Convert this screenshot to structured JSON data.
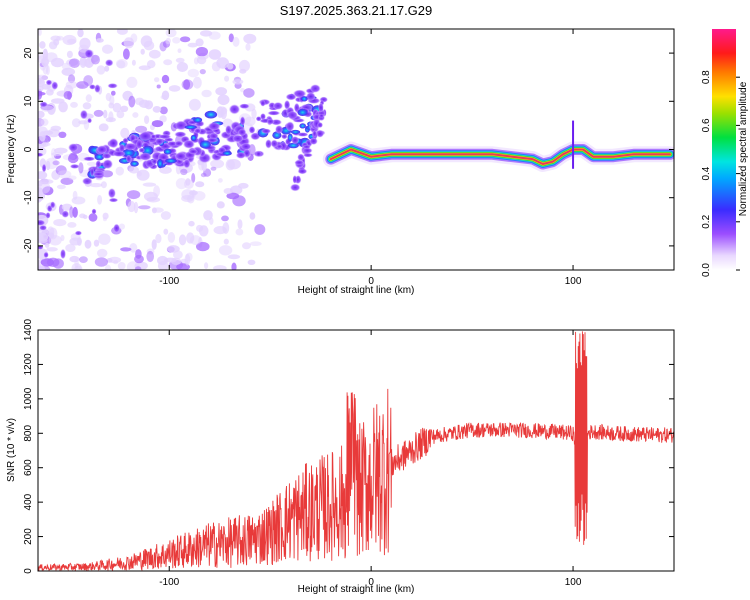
{
  "colors": {
    "background": "#ffffff",
    "snr_line": "#e83a3a",
    "spectral_band": "#e83a5a",
    "spectral_halo": "#7a2ee8"
  },
  "chart_data": [
    {
      "type": "heatmap",
      "panel": "top",
      "title": "S197.2025.363.21.17.G29",
      "xlabel": "Height of straight line (km)",
      "ylabel": "Frequency (Hz)",
      "xlim": [
        -165,
        150
      ],
      "ylim": [
        -25,
        25
      ],
      "xticks": [
        -100,
        0,
        100
      ],
      "yticks": [
        -20,
        -10,
        0,
        10,
        20
      ],
      "colorbar": {
        "label": "Normalized spectral amplitude",
        "range": [
          0,
          1
        ],
        "ticks": [
          "0.0",
          "0.2",
          "0.4",
          "0.6",
          "0.8"
        ],
        "colormap": "rainbow (white-violet-blue-cyan-green-yellow-red-magenta)"
      },
      "dominant_frequency_track": {
        "x": [
          -20,
          -10,
          0,
          10,
          20,
          40,
          60,
          70,
          80,
          85,
          90,
          95,
          100,
          105,
          110,
          120,
          130,
          140,
          148
        ],
        "y": [
          -2,
          0,
          -1.5,
          -1,
          -1,
          -1,
          -1,
          -1.5,
          -2,
          -3,
          -2.5,
          -1,
          0,
          0,
          -1.5,
          -1.5,
          -1,
          -1,
          -1
        ]
      }
    },
    {
      "type": "line",
      "panel": "bottom",
      "xlabel": "Height of straight line (km)",
      "ylabel": "SNR (10 * v/v)",
      "xlim": [
        -165,
        150
      ],
      "ylim": [
        0,
        1400
      ],
      "xticks": [
        -100,
        0,
        100
      ],
      "yticks": [
        0,
        200,
        400,
        600,
        800,
        1000,
        1200,
        1400
      ],
      "series": [
        {
          "name": "SNR",
          "envelope_x": [
            -165,
            -140,
            -120,
            -100,
            -80,
            -60,
            -50,
            -40,
            -30,
            -20,
            -10,
            0,
            10,
            20,
            30,
            50,
            70,
            90,
            100,
            103,
            106,
            110,
            120,
            140,
            150
          ],
          "envelope_y": [
            20,
            25,
            50,
            100,
            150,
            180,
            220,
            300,
            350,
            380,
            420,
            520,
            620,
            700,
            780,
            820,
            820,
            810,
            800,
            600,
            800,
            810,
            800,
            790,
            790
          ]
        }
      ]
    }
  ]
}
